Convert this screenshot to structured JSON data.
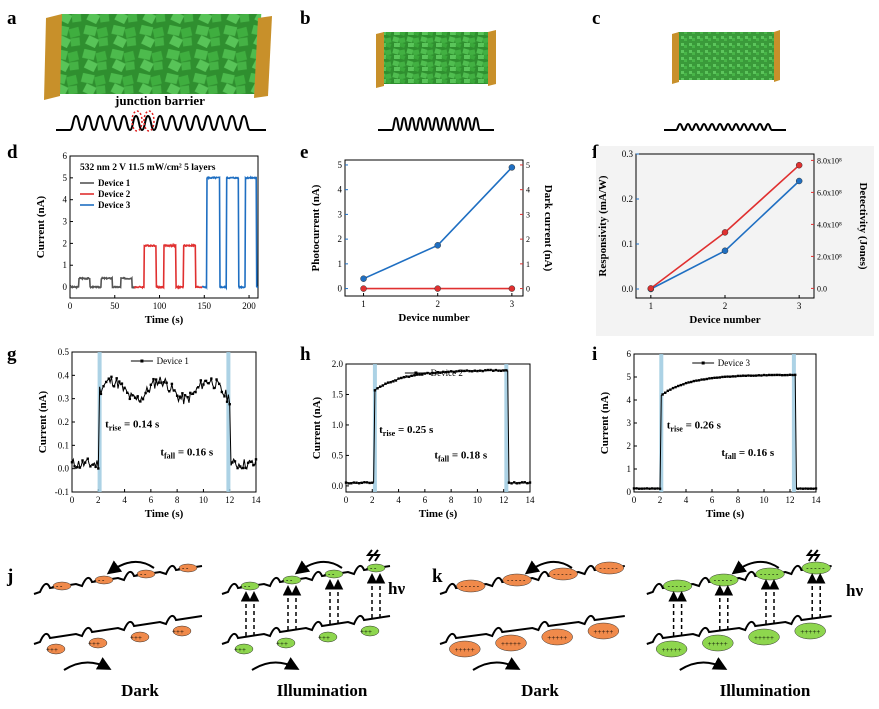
{
  "panel_labels": {
    "a": "a",
    "b": "b",
    "c": "c",
    "d": "d",
    "e": "e",
    "f": "f",
    "g": "g",
    "h": "h",
    "i": "i",
    "j": "j",
    "k": "k"
  },
  "schematics": {
    "junction_label": "junction barrier",
    "dark_label": "Dark",
    "illumination_label": "Illumination",
    "hv_label": "hν"
  },
  "colors": {
    "device1": "#555555",
    "device2": "#e03030",
    "device3": "#1f6fc2",
    "photocurrent": "#1f6fc2",
    "dark_current": "#e03030",
    "shade": "#9ecae1",
    "flake": "#3aa53a",
    "electrode": "#c8902a",
    "orange": "#f08a4b",
    "green": "#8ed64e"
  },
  "chart_data": [
    {
      "id": "d",
      "type": "line",
      "title": "532 nm  2 V  11.5 mW/cm²  5 layers",
      "xlabel": "Time (s)",
      "ylabel": "Current (nA)",
      "xlim": [
        0,
        210
      ],
      "ylim": [
        -0.5,
        6
      ],
      "xticks": [
        0,
        50,
        100,
        150,
        200
      ],
      "yticks": [
        0,
        1,
        2,
        3,
        4,
        5,
        6
      ],
      "series": [
        {
          "name": "Device 1",
          "color": "#555555",
          "pulses": [
            [
              10,
              22
            ],
            [
              35,
              47
            ],
            [
              57,
              69
            ]
          ],
          "on": 0.4,
          "off": 0.0,
          "x_range": [
            0,
            72
          ]
        },
        {
          "name": "Device 2",
          "color": "#e03030",
          "pulses": [
            [
              83,
              96
            ],
            [
              105,
              118
            ],
            [
              127,
              140
            ]
          ],
          "on": 1.9,
          "off": 0.0,
          "x_range": [
            72,
            148
          ]
        },
        {
          "name": "Device 3",
          "color": "#1f6fc2",
          "pulses": [
            [
              153,
              167
            ],
            [
              175,
              188
            ],
            [
              196,
              208
            ]
          ],
          "on": 5.0,
          "off": 0.0,
          "x_range": [
            148,
            210
          ]
        }
      ]
    },
    {
      "id": "e",
      "type": "line",
      "xlabel": "Device number",
      "ylabel": "Photocurrent (nA)",
      "ylabel_right": "Dark current (nA)",
      "x": [
        1,
        2,
        3
      ],
      "xticks": [
        1,
        2,
        3
      ],
      "ylim": [
        -0.3,
        5.2
      ],
      "yticks": [
        0,
        1,
        2,
        3,
        4,
        5
      ],
      "y2lim": [
        -0.3,
        5.2
      ],
      "y2ticks": [
        0,
        1,
        2,
        3,
        4,
        5
      ],
      "series": [
        {
          "name": "Photocurrent",
          "axis": "left",
          "color": "#1f6fc2",
          "values": [
            0.4,
            1.75,
            4.9
          ]
        },
        {
          "name": "Dark current",
          "axis": "right",
          "color": "#e03030",
          "values": [
            0.0,
            0.0,
            0.0
          ]
        }
      ]
    },
    {
      "id": "f",
      "type": "line",
      "xlabel": "Device number",
      "ylabel": "Responsivity (mA/W)",
      "ylabel_right": "Detectivity (Jones)",
      "x": [
        1,
        2,
        3
      ],
      "xticks": [
        1,
        2,
        3
      ],
      "ylim": [
        -0.02,
        0.3
      ],
      "yticks": [
        0.0,
        0.1,
        0.2,
        0.3
      ],
      "ytick_labels": [
        "0.0",
        "0.1",
        "0.2",
        "0.3"
      ],
      "y2lim": [
        -0.6,
        8.4
      ],
      "y2ticks": [
        0,
        2,
        4,
        6,
        8
      ],
      "y2tick_labels": [
        "0.0",
        "2.0x10⁸",
        "4.0x10⁸",
        "6.0x10⁸",
        "8.0x10⁸"
      ],
      "series": [
        {
          "name": "Responsivity",
          "axis": "left",
          "color": "#1f6fc2",
          "values": [
            0.0,
            0.085,
            0.24
          ]
        },
        {
          "name": "Detectivity",
          "axis": "right",
          "color": "#e03030",
          "values": [
            0.0,
            3.5,
            7.7
          ]
        }
      ]
    },
    {
      "id": "g",
      "type": "line",
      "legend": "Device 1",
      "xlabel": "Time (s)",
      "ylabel": "Current (nA)",
      "xlim": [
        0,
        14
      ],
      "ylim": [
        -0.1,
        0.5
      ],
      "xticks": [
        0,
        2,
        4,
        6,
        8,
        10,
        12,
        14
      ],
      "yticks": [
        -0.1,
        0.0,
        0.1,
        0.2,
        0.3,
        0.4,
        0.5
      ],
      "ytick_labels": [
        "-0.1",
        "0.0",
        "0.1",
        "0.2",
        "0.3",
        "0.4",
        "0.5"
      ],
      "on_time": 2.1,
      "off_time": 11.9,
      "low": 0.02,
      "high": 0.38,
      "ripple": 0.04,
      "noise": 0.025,
      "rise_label": "t_rise = 0.14 s",
      "fall_label": "t_fall = 0.16 s",
      "rise_text": "t",
      "rise_sub": "rise",
      "rise_val": " = 0.14 s",
      "fall_text": "t",
      "fall_sub": "fall",
      "fall_val": " = 0.16 s"
    },
    {
      "id": "h",
      "type": "line",
      "legend": "Device 2",
      "xlabel": "Time (s)",
      "ylabel": "Current (nA)",
      "xlim": [
        0,
        14
      ],
      "ylim": [
        -0.1,
        2.0
      ],
      "xticks": [
        0,
        2,
        4,
        6,
        8,
        10,
        12,
        14
      ],
      "yticks": [
        0.0,
        0.5,
        1.0,
        1.5,
        2.0
      ],
      "ytick_labels": [
        "0.0",
        "0.5",
        "1.0",
        "1.5",
        "2.0"
      ],
      "on_time": 2.2,
      "off_time": 12.2,
      "low": 0.05,
      "high": 1.9,
      "ripple": 0.0,
      "noise": 0.01,
      "rise_label": "t_rise = 0.25 s",
      "fall_label": "t_fall = 0.18 s",
      "rise_text": "t",
      "rise_sub": "rise",
      "rise_val": " = 0.25 s",
      "fall_text": "t",
      "fall_sub": "fall",
      "fall_val": " = 0.18 s"
    },
    {
      "id": "i",
      "type": "line",
      "legend": "Device 3",
      "xlabel": "Time (s)",
      "ylabel": "Current (nA)",
      "xlim": [
        0,
        14
      ],
      "ylim": [
        0,
        6
      ],
      "xticks": [
        0,
        2,
        4,
        6,
        8,
        10,
        12,
        14
      ],
      "yticks": [
        0,
        1,
        2,
        3,
        4,
        5,
        6
      ],
      "ytick_labels": [
        "0",
        "1",
        "2",
        "3",
        "4",
        "5",
        "6"
      ],
      "on_time": 2.1,
      "off_time": 12.3,
      "low": 0.15,
      "high": 5.1,
      "ripple": 0.0,
      "noise": 0.01,
      "rise_label": "t_rise = 0.26 s",
      "fall_label": "t_fall = 0.16 s",
      "rise_text": "t",
      "rise_sub": "rise",
      "rise_val": " = 0.26 s",
      "fall_text": "t",
      "fall_sub": "fall",
      "fall_val": " = 0.16 s"
    }
  ]
}
